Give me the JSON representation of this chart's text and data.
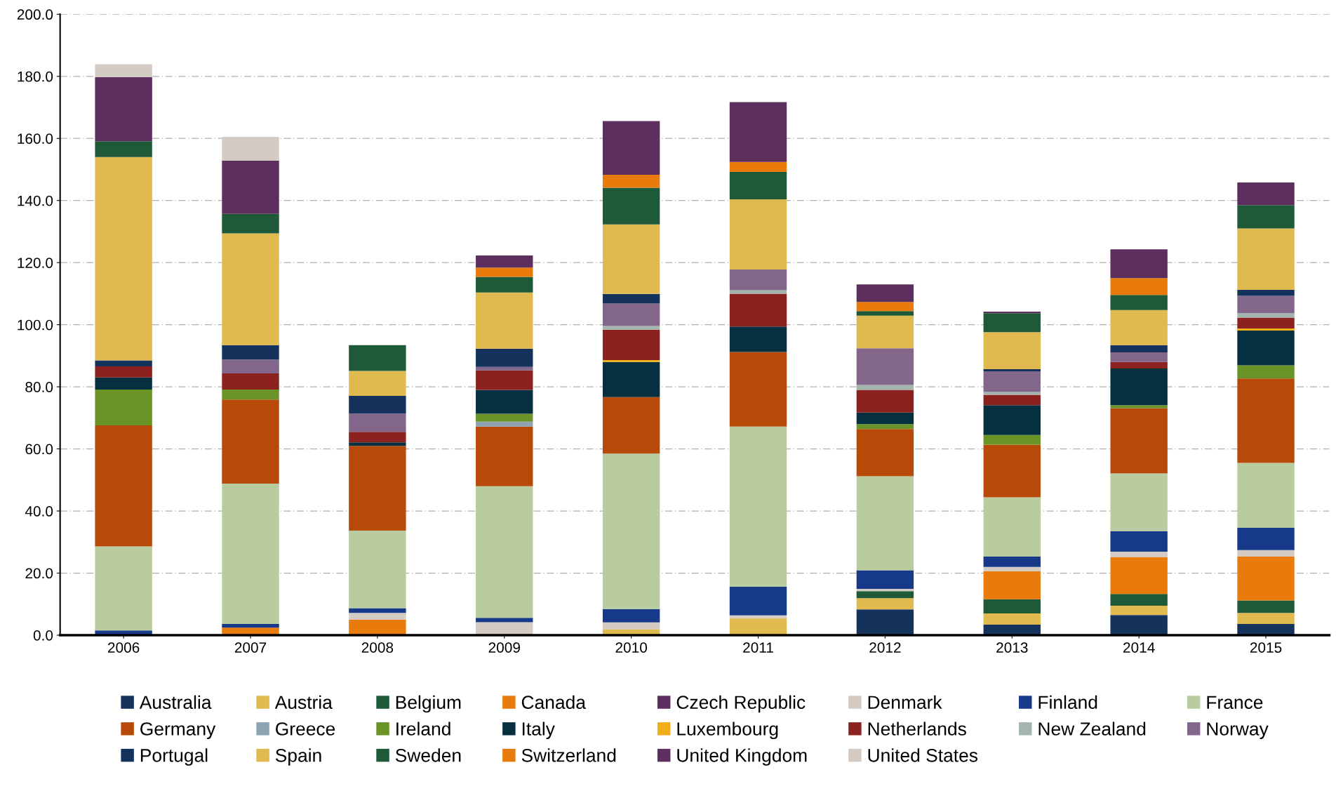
{
  "chart_data": {
    "type": "bar",
    "stacked": true,
    "categories": [
      "2006",
      "2007",
      "2008",
      "2009",
      "2010",
      "2011",
      "2012",
      "2013",
      "2014",
      "2015"
    ],
    "ylim": [
      0,
      200
    ],
    "yticks": [
      {
        "value": 0,
        "label": "0.0"
      },
      {
        "value": 20,
        "label": "20.0"
      },
      {
        "value": 40,
        "label": "40.0"
      },
      {
        "value": 60,
        "label": "60.0"
      },
      {
        "value": 80,
        "label": "80.0"
      },
      {
        "value": 100,
        "label": "100.0"
      },
      {
        "value": 120,
        "label": "120.0"
      },
      {
        "value": 140,
        "label": "140.0"
      },
      {
        "value": 160,
        "label": "160.0"
      },
      {
        "value": 180,
        "label": "180.0"
      },
      {
        "value": 200,
        "label": "200.0"
      }
    ],
    "grid": "y",
    "legend": "bottom",
    "series": [
      {
        "name": "Australia",
        "color": "#14325c",
        "values": [
          null,
          null,
          null,
          null,
          null,
          null,
          8.3,
          3.4,
          6.5,
          3.6
        ]
      },
      {
        "name": "Austria",
        "color": "#e0b94f",
        "values": [
          null,
          null,
          null,
          null,
          1.9,
          5.5,
          3.6,
          3.6,
          3.0,
          3.6
        ]
      },
      {
        "name": "Belgium",
        "color": "#1e5a37",
        "values": [
          null,
          null,
          null,
          null,
          null,
          null,
          2.3,
          4.6,
          3.8,
          4.0
        ]
      },
      {
        "name": "Canada",
        "color": "#e87b0c",
        "values": [
          null,
          2.4,
          5.0,
          null,
          null,
          null,
          null,
          9.0,
          11.8,
          14.1
        ]
      },
      {
        "name": "Czech Republic",
        "color": "#5c2f5e",
        "values": [
          null,
          null,
          null,
          null,
          null,
          null,
          null,
          null,
          null,
          null
        ]
      },
      {
        "name": "Denmark",
        "color": "#d3cbc4",
        "values": [
          null,
          null,
          2.2,
          4.2,
          2.2,
          0.9,
          0.7,
          1.4,
          1.8,
          2.1
        ]
      },
      {
        "name": "Finland",
        "color": "#17398a",
        "values": [
          1.5,
          1.2,
          1.5,
          1.4,
          4.3,
          9.2,
          6.0,
          3.3,
          6.6,
          7.2
        ]
      },
      {
        "name": "France",
        "color": "#b9cca0",
        "values": [
          27.1,
          45.2,
          25.0,
          42.4,
          50.1,
          51.6,
          30.3,
          19.1,
          18.6,
          20.9
        ]
      },
      {
        "name": "Germany",
        "color": "#b84a09",
        "values": [
          39.0,
          27.1,
          27.3,
          19.2,
          18.2,
          24.0,
          15.2,
          17.0,
          21.0,
          27.2
        ]
      },
      {
        "name": "Greece",
        "color": "#8ea3b2",
        "values": [
          null,
          null,
          null,
          1.6,
          null,
          null,
          null,
          null,
          null,
          null
        ]
      },
      {
        "name": "Ireland",
        "color": "#6a9427",
        "values": [
          11.5,
          3.2,
          null,
          2.5,
          null,
          null,
          1.6,
          3.1,
          1.0,
          4.2
        ]
      },
      {
        "name": "Italy",
        "color": "#06303f",
        "values": [
          3.9,
          null,
          1.1,
          7.7,
          11.3,
          8.2,
          3.7,
          9.6,
          11.8,
          11.2
        ]
      },
      {
        "name": "Luxembourg",
        "color": "#f0ae1a",
        "values": [
          null,
          null,
          null,
          null,
          0.6,
          null,
          null,
          null,
          null,
          0.7
        ]
      },
      {
        "name": "Netherlands",
        "color": "#8c2220",
        "values": [
          3.6,
          5.2,
          3.4,
          6.3,
          9.8,
          10.6,
          7.3,
          3.3,
          2.1,
          3.5
        ]
      },
      {
        "name": "New Zealand",
        "color": "#a3b6ae",
        "values": [
          null,
          null,
          null,
          null,
          1.2,
          1.1,
          1.6,
          0.9,
          null,
          1.4
        ]
      },
      {
        "name": "Norway",
        "color": "#82678a",
        "values": [
          null,
          4.5,
          5.9,
          1.1,
          7.2,
          6.7,
          11.8,
          6.7,
          3.1,
          5.6
        ]
      },
      {
        "name": "Portugal",
        "color": "#14325c",
        "values": [
          1.9,
          4.6,
          5.7,
          5.9,
          3.1,
          null,
          null,
          0.7,
          2.3,
          1.9
        ]
      },
      {
        "name": "Spain",
        "color": "#e0b94f",
        "values": [
          65.5,
          36.0,
          8.0,
          18.1,
          22.4,
          22.6,
          10.5,
          11.9,
          11.3,
          19.8
        ]
      },
      {
        "name": "Sweden",
        "color": "#1e5a37",
        "values": [
          5.1,
          6.3,
          8.3,
          5.0,
          11.8,
          8.8,
          1.5,
          6.1,
          4.9,
          7.5
        ]
      },
      {
        "name": "Switzerland",
        "color": "#e87b0c",
        "values": [
          null,
          null,
          null,
          3.0,
          4.2,
          3.2,
          2.9,
          null,
          5.4,
          null
        ]
      },
      {
        "name": "United Kingdom",
        "color": "#5c2f5e",
        "values": [
          20.6,
          17.2,
          null,
          3.9,
          17.3,
          19.3,
          5.7,
          0.5,
          9.3,
          7.3
        ]
      },
      {
        "name": "United States",
        "color": "#d3cbc4",
        "values": [
          4.2,
          7.6,
          null,
          null,
          null,
          null,
          null,
          null,
          null,
          null
        ]
      }
    ]
  }
}
